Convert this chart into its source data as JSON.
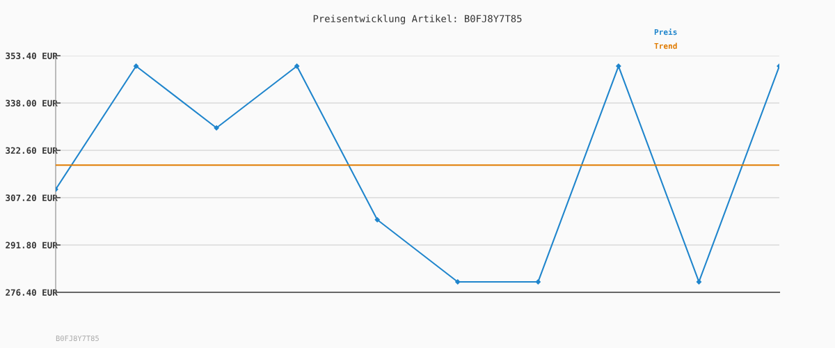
{
  "chart_data": {
    "type": "line",
    "title": "Preisentwicklung Artikel: B0FJ8Y7T85",
    "categories": [
      null,
      null,
      null,
      null,
      null,
      null,
      null,
      null,
      null,
      null
    ],
    "series": [
      {
        "name": "Preis",
        "color": "#1f85cc",
        "values": [
          309.9,
          350.0,
          329.9,
          350.0,
          300.0,
          279.8,
          279.8,
          350.0,
          279.8,
          350.0
        ],
        "marker": "diamond"
      },
      {
        "name": "Trend",
        "color": "#e07b00",
        "values": [
          317.8,
          317.8,
          317.8,
          317.8,
          317.8,
          317.8,
          317.8,
          317.8,
          317.8,
          317.8
        ],
        "marker": "none"
      }
    ],
    "ylim": [
      276.4,
      353.4
    ],
    "yticks": [
      {
        "value": 276.4,
        "label": "276.40 EUR"
      },
      {
        "value": 291.8,
        "label": "291.80 EUR"
      },
      {
        "value": 307.2,
        "label": "307.20 EUR"
      },
      {
        "value": 322.6,
        "label": "322.60 EUR"
      },
      {
        "value": 338.0,
        "label": "338.00 EUR"
      },
      {
        "value": 353.4,
        "label": "353.40 EUR"
      }
    ],
    "grid": "y",
    "legend": "top right",
    "line_style": "solid",
    "annotations": [
      "B0FJ8Y7T85"
    ]
  }
}
